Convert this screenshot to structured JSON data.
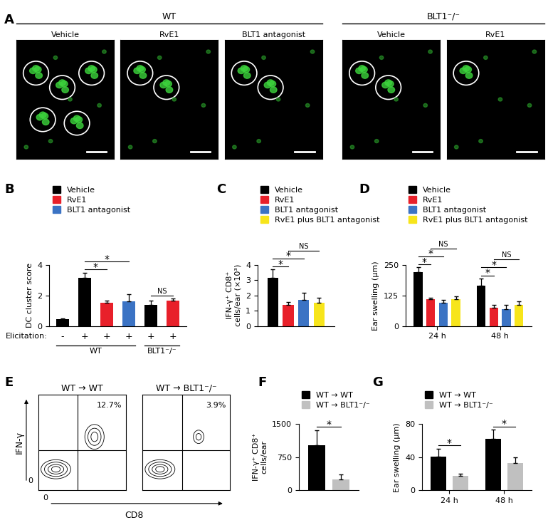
{
  "panel_letters": [
    "A",
    "B",
    "C",
    "D",
    "E",
    "F",
    "G"
  ],
  "figure_a": {
    "type": "image_grid",
    "groups": [
      {
        "title": "WT",
        "images": [
          "Vehicle",
          "RvE1",
          "BLT1 antagonist"
        ],
        "clusters": [
          5,
          2,
          2
        ]
      },
      {
        "title": "BLT1⁻/⁻",
        "images": [
          "Vehicle",
          "RvE1"
        ],
        "clusters": [
          2,
          1
        ]
      }
    ]
  },
  "chart_data": [
    {
      "type": "bar",
      "ylabel": "DC cluster score",
      "ylim": [
        0,
        4
      ],
      "yticks": [
        0,
        2,
        4
      ],
      "categories": [
        "-",
        "+",
        "+",
        "+",
        "+",
        "+"
      ],
      "category_axis_label": "Elicitation:",
      "category_groups": [
        {
          "label": "WT",
          "from": 0,
          "to": 3
        },
        {
          "label": "BLT1⁻/⁻",
          "from": 4,
          "to": 5
        }
      ],
      "values": [
        0.45,
        3.15,
        1.5,
        1.6,
        1.4,
        1.65
      ],
      "errors": [
        0.05,
        0.35,
        0.15,
        0.5,
        0.25,
        0.15
      ],
      "colors": [
        "#000000",
        "#000000",
        "#e8202a",
        "#3b73c4",
        "#000000",
        "#e8202a"
      ],
      "legend": "upper left",
      "legend_entries": [
        {
          "name": "Vehicle",
          "color": "#000000"
        },
        {
          "name": "RvE1",
          "color": "#e8202a"
        },
        {
          "name": "BLT1 antagonist",
          "color": "#3b73c4"
        }
      ],
      "significance": [
        {
          "from": 1,
          "to": 2,
          "label": "*"
        },
        {
          "from": 1,
          "to": 3,
          "label": "*"
        },
        {
          "from": 4,
          "to": 5,
          "label": "NS"
        }
      ]
    },
    {
      "type": "grouped_bar",
      "ylabel": "IFN-γ⁺ CD8⁺\ncells/ear (×10³)",
      "ylim": [
        0,
        4
      ],
      "yticks": [
        0,
        1,
        2,
        3,
        4
      ],
      "categories": [
        null
      ],
      "tick_labels": "y",
      "legend": "upper left",
      "series": [
        {
          "name": "Vehicle",
          "color": "#000000",
          "values": [
            3.15
          ],
          "errors": [
            0.55
          ]
        },
        {
          "name": "RvE1",
          "color": "#e8202a",
          "values": [
            1.4
          ],
          "errors": [
            0.15
          ]
        },
        {
          "name": "BLT1 antagonist",
          "color": "#3b73c4",
          "values": [
            1.7
          ],
          "errors": [
            0.5
          ]
        },
        {
          "name": "RvE1 plus BLT1 antagonist",
          "color": "#f7e51b",
          "values": [
            1.5
          ],
          "errors": [
            0.35
          ]
        }
      ],
      "significance": [
        {
          "category": 0,
          "from": 0,
          "to": 1,
          "label": "*"
        },
        {
          "category": 0,
          "from": 0,
          "to": 2,
          "label": "*"
        },
        {
          "category": 0,
          "from": 1,
          "to": 3,
          "label": "NS"
        }
      ]
    },
    {
      "type": "grouped_bar",
      "ylabel": "Ear swelling (μm)",
      "ylim": [
        0,
        250
      ],
      "yticks": [
        0,
        125,
        250
      ],
      "categories": [
        "24 h",
        "48 h"
      ],
      "legend": "upper left",
      "series": [
        {
          "name": "Vehicle",
          "color": "#000000",
          "values": [
            220,
            165
          ],
          "errors": [
            20,
            30
          ]
        },
        {
          "name": "RvE1",
          "color": "#e8202a",
          "values": [
            110,
            75
          ],
          "errors": [
            5,
            10
          ]
        },
        {
          "name": "BLT1 antagonist",
          "color": "#3b73c4",
          "values": [
            95,
            70
          ],
          "errors": [
            12,
            15
          ]
        },
        {
          "name": "RvE1 plus BLT1 antagonist",
          "color": "#f7e51b",
          "values": [
            110,
            85
          ],
          "errors": [
            12,
            15
          ]
        }
      ],
      "significance": [
        {
          "category": 0,
          "from": 0,
          "to": 1,
          "label": "*"
        },
        {
          "category": 0,
          "from": 0,
          "to": 2,
          "label": "*"
        },
        {
          "category": 0,
          "from": 1,
          "to": 3,
          "label": "NS"
        },
        {
          "category": 1,
          "from": 0,
          "to": 1,
          "label": "*"
        },
        {
          "category": 1,
          "from": 0,
          "to": 2,
          "label": "*"
        },
        {
          "category": 1,
          "from": 1,
          "to": 3,
          "label": "NS"
        }
      ]
    },
    {
      "type": "flow_cytometry",
      "xlabel": "CD8",
      "ylabel": "IFN-γ",
      "tick_label": "0",
      "plots": [
        {
          "title": "WT → WT",
          "quadrant_label": "12.7%"
        },
        {
          "title": "WT → BLT1⁻/⁻",
          "quadrant_label": "3.9%"
        }
      ]
    },
    {
      "type": "grouped_bar",
      "ylabel": "IFN-γ⁺ CD8⁺\ncells/ear",
      "ylim": [
        0,
        1500
      ],
      "yticks": [
        0,
        750,
        1500
      ],
      "categories": [
        null
      ],
      "tick_labels": "y",
      "legend": "upper left",
      "series": [
        {
          "name": "WT → WT",
          "color": "#000000",
          "values": [
            1020
          ],
          "errors": [
            340
          ]
        },
        {
          "name": "WT → BLT1⁻/⁻",
          "color": "#c0c0c0",
          "values": [
            250
          ],
          "errors": [
            110
          ]
        }
      ],
      "significance": [
        {
          "category": 0,
          "from": 0,
          "to": 1,
          "label": "*"
        }
      ]
    },
    {
      "type": "grouped_bar",
      "ylabel": "Ear swelling (μm)",
      "ylim": [
        0,
        80
      ],
      "yticks": [
        0,
        40,
        80
      ],
      "categories": [
        "24 h",
        "48 h"
      ],
      "legend": "upper left",
      "series": [
        {
          "name": "WT → WT",
          "color": "#000000",
          "values": [
            41,
            62
          ],
          "errors": [
            9,
            11
          ]
        },
        {
          "name": "WT → BLT1⁻/⁻",
          "color": "#c0c0c0",
          "values": [
            17,
            33
          ],
          "errors": [
            3,
            7
          ]
        }
      ],
      "significance": [
        {
          "category": 0,
          "from": 0,
          "to": 1,
          "label": "*"
        },
        {
          "category": 1,
          "from": 0,
          "to": 1,
          "label": "*"
        }
      ]
    }
  ]
}
